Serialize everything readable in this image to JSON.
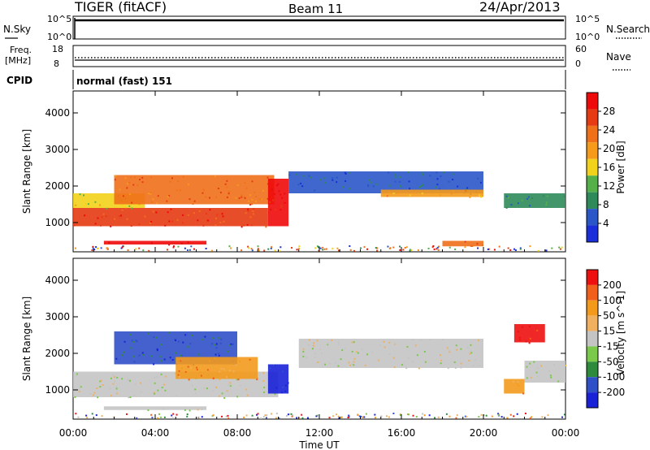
{
  "header": {
    "station": "TIGER (fitACF)",
    "beam": "Beam 11",
    "date": "24/Apr/2013"
  },
  "status_panels": {
    "nsky_label": "N.Sky",
    "nsearch_label": "N.Search",
    "freq_label_1": "Freq.",
    "freq_label_2": "[MHz]",
    "nave_label": "Nave",
    "cpid_label": "CPID",
    "cpid_value": "normal (fast) 151",
    "noise_ticks": [
      "10^5",
      "10^0"
    ],
    "freq_ticks": [
      "18",
      "8"
    ],
    "nave_ticks": [
      "60",
      "0"
    ]
  },
  "colors": {
    "power_scale": [
      "#1a2fd9",
      "#2a56c8",
      "#2f8a5a",
      "#55b04a",
      "#f2d21a",
      "#f59a1a",
      "#f0701a",
      "#e63a12",
      "#ee0a0a"
    ],
    "velocity_scale": [
      "#1a22d8",
      "#3050c8",
      "#2e8a3c",
      "#7ac94a",
      "#c4c4c4",
      "#f0b060",
      "#f39a1c",
      "#f0601a",
      "#ee0f0f"
    ]
  },
  "chart_data": [
    {
      "type": "heatmap",
      "name": "power",
      "xlabel": "",
      "ylabel": "Slant Range [km]",
      "x_range": [
        "00:00",
        "00:00"
      ],
      "ylim": [
        200,
        4600
      ],
      "yticks": [
        "4000",
        "3000",
        "2000",
        "1000"
      ],
      "colorbar_label": "Power [dB]",
      "colorbar_ticks": [
        "28",
        "24",
        "20",
        "16",
        "12",
        "8",
        "4"
      ],
      "bands": [
        {
          "t0": 0.0,
          "t1": 9.5,
          "r0": 900,
          "r1": 1400,
          "level": 7
        },
        {
          "t0": 0.0,
          "t1": 3.5,
          "r0": 1400,
          "r1": 1800,
          "level": 4
        },
        {
          "t0": 2.0,
          "t1": 9.8,
          "r0": 1500,
          "r1": 2300,
          "level": 6
        },
        {
          "t0": 1.5,
          "t1": 6.5,
          "r0": 400,
          "r1": 500,
          "level": 8
        },
        {
          "t0": 9.5,
          "t1": 10.5,
          "r0": 900,
          "r1": 2200,
          "level": 8
        },
        {
          "t0": 10.5,
          "t1": 20.0,
          "r0": 1800,
          "r1": 2400,
          "level": 1
        },
        {
          "t0": 15.0,
          "t1": 20.0,
          "r0": 1700,
          "r1": 1900,
          "level": 5
        },
        {
          "t0": 21.0,
          "t1": 24.0,
          "r0": 1400,
          "r1": 1800,
          "level": 2
        },
        {
          "t0": 18.0,
          "t1": 20.0,
          "r0": 350,
          "r1": 500,
          "level": 6
        }
      ]
    },
    {
      "type": "heatmap",
      "name": "velocity",
      "xlabel": "Time UT",
      "ylabel": "Slant Range [km]",
      "x_range": [
        "00:00",
        "00:00"
      ],
      "ylim": [
        200,
        4600
      ],
      "xticks": [
        "00:00",
        "04:00",
        "08:00",
        "12:00",
        "16:00",
        "20:00",
        "00:00"
      ],
      "yticks": [
        "4000",
        "3000",
        "2000",
        "1000"
      ],
      "colorbar_label": "Velocity [m s^-1]",
      "colorbar_ticks": [
        "200",
        "100",
        "50",
        "15",
        "-15",
        "-50",
        "-100",
        "-200"
      ],
      "bands": [
        {
          "t0": 0.0,
          "t1": 10.0,
          "r0": 800,
          "r1": 1500,
          "level": 4
        },
        {
          "t0": 2.0,
          "t1": 8.0,
          "r0": 1700,
          "r1": 2600,
          "level": 1
        },
        {
          "t0": 5.0,
          "t1": 9.0,
          "r0": 1300,
          "r1": 1900,
          "level": 6
        },
        {
          "t0": 9.5,
          "t1": 10.5,
          "r0": 900,
          "r1": 1700,
          "level": 0
        },
        {
          "t0": 11.0,
          "t1": 20.0,
          "r0": 1600,
          "r1": 2400,
          "level": 4
        },
        {
          "t0": 1.5,
          "t1": 6.5,
          "r0": 450,
          "r1": 550,
          "level": 4
        },
        {
          "t0": 21.0,
          "t1": 22.0,
          "r0": 900,
          "r1": 1300,
          "level": 6
        },
        {
          "t0": 21.5,
          "t1": 23.0,
          "r0": 2300,
          "r1": 2800,
          "level": 8
        },
        {
          "t0": 22.0,
          "t1": 24.0,
          "r0": 1200,
          "r1": 1800,
          "level": 4
        }
      ]
    }
  ]
}
